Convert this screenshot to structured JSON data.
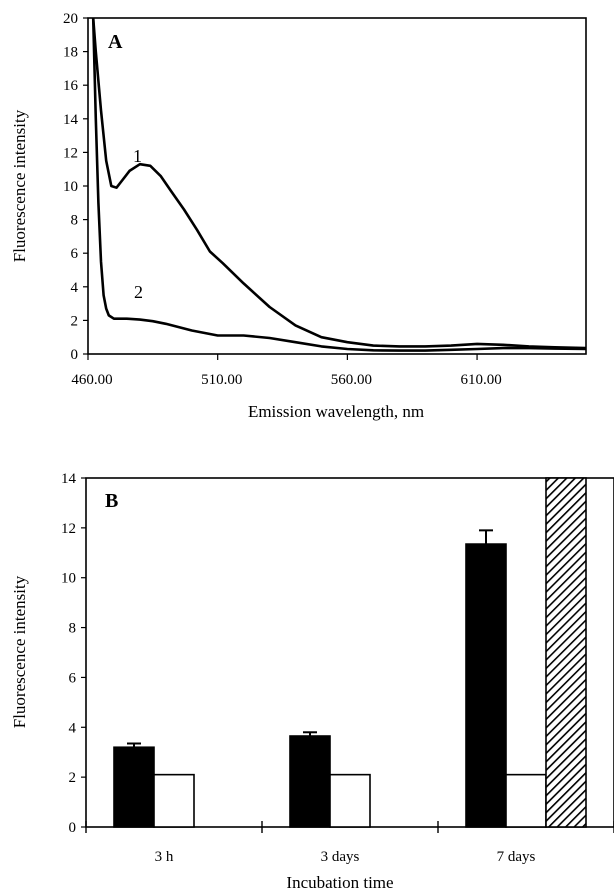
{
  "chart_data": [
    {
      "type": "line",
      "panel_label": "A",
      "xlabel": "Emission wavelength, nm",
      "ylabel": "Fluorescence intensity",
      "xlim": [
        460,
        652
      ],
      "ylim": [
        0,
        20
      ],
      "x_ticks": [
        460,
        510,
        560,
        610
      ],
      "x_tick_labels": [
        "460.00",
        "510.00",
        "560.00",
        "610.00"
      ],
      "y_ticks": [
        0,
        2,
        4,
        6,
        8,
        10,
        12,
        14,
        16,
        18,
        20
      ],
      "grid": false,
      "series": [
        {
          "name": "1",
          "x": [
            462,
            463,
            465,
            467,
            469,
            471,
            473,
            476,
            480,
            484,
            488,
            492,
            497,
            502,
            507,
            512,
            520,
            530,
            540,
            550,
            560,
            570,
            580,
            590,
            600,
            610,
            620,
            630,
            640,
            652
          ],
          "y": [
            20,
            18,
            14.5,
            11.5,
            10,
            9.9,
            10.3,
            10.9,
            11.3,
            11.2,
            10.6,
            9.7,
            8.6,
            7.4,
            6.1,
            5.4,
            4.2,
            2.8,
            1.7,
            1.0,
            0.7,
            0.5,
            0.45,
            0.45,
            0.5,
            0.6,
            0.55,
            0.45,
            0.4,
            0.35
          ]
        },
        {
          "name": "2",
          "x": [
            462,
            463,
            464,
            465,
            466,
            467,
            468,
            470,
            475,
            480,
            485,
            490,
            500,
            510,
            520,
            530,
            540,
            550,
            560,
            570,
            580,
            590,
            600,
            610,
            620,
            630,
            640,
            652
          ],
          "y": [
            20,
            14,
            9,
            5.5,
            3.5,
            2.7,
            2.3,
            2.1,
            2.1,
            2.05,
            1.95,
            1.8,
            1.4,
            1.1,
            1.1,
            0.95,
            0.7,
            0.45,
            0.3,
            0.22,
            0.2,
            0.2,
            0.25,
            0.3,
            0.35,
            0.35,
            0.32,
            0.3
          ]
        }
      ]
    },
    {
      "type": "bar",
      "panel_label": "B",
      "xlabel": "Incubation time",
      "ylabel": "Fluorescence intensity",
      "categories": [
        "3 h",
        "3 days",
        "7 days"
      ],
      "ylim": [
        0,
        14
      ],
      "y_ticks": [
        0,
        2,
        4,
        6,
        8,
        10,
        12,
        14
      ],
      "grid": false,
      "series": [
        {
          "fill": "#000000",
          "values": [
            3.2,
            3.65,
            11.35
          ],
          "errors": [
            0.15,
            0.15,
            0.55
          ]
        },
        {
          "fill": "#ffffff",
          "values": [
            2.1,
            2.1,
            2.1
          ]
        },
        {
          "fill": "hatched",
          "values": [
            null,
            null,
            14
          ]
        }
      ]
    }
  ]
}
